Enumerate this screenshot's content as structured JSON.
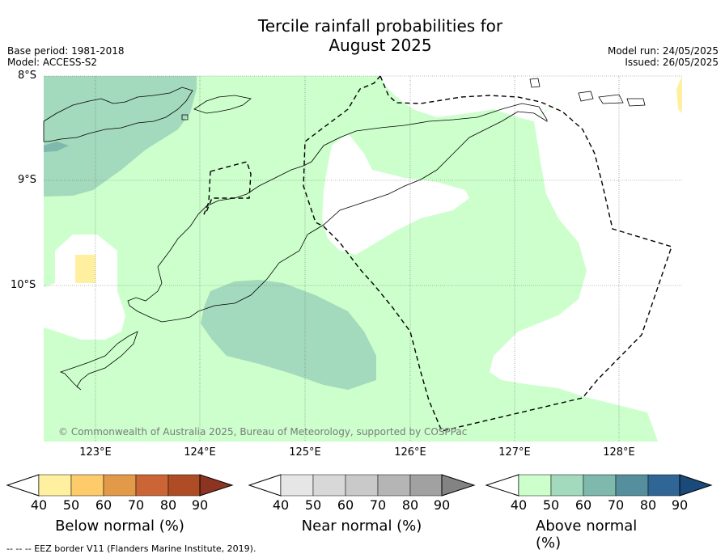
{
  "title_line1": "Tercile rainfall probabilities for",
  "title_line2": "August 2025",
  "base_period": "Base period: 1981-2018",
  "model": "Model: ACCESS-S2",
  "model_run": "Model run: 24/05/2025",
  "issued": "Issued: 26/05/2025",
  "lat_labels": [
    "8°S",
    "9°S",
    "10°S"
  ],
  "lon_labels": [
    "123°E",
    "124°E",
    "125°E",
    "126°E",
    "127°E",
    "128°E"
  ],
  "copyright": "© Commonwealth of Australia 2025, Bureau of Meteorology, supported by COSPPac",
  "colorbars": [
    {
      "label": "Below normal (%)",
      "ticks": [
        "40",
        "50",
        "60",
        "70",
        "80",
        "90"
      ],
      "colors": [
        "#ffffff",
        "#fff0a0",
        "#fdcb6a",
        "#e29a48",
        "#cc6535",
        "#ae4c26",
        "#8c3421"
      ]
    },
    {
      "label": "Near normal (%)",
      "ticks": [
        "40",
        "50",
        "60",
        "70",
        "80",
        "90"
      ],
      "colors": [
        "#ffffff",
        "#e6e6e6",
        "#d8d8d8",
        "#c9c9c9",
        "#b5b5b5",
        "#a1a1a1",
        "#838383"
      ]
    },
    {
      "label": "Above normal (%)",
      "ticks": [
        "40",
        "50",
        "60",
        "70",
        "80",
        "90"
      ],
      "colors": [
        "#ffffff",
        "#ccffcc",
        "#a3d9bc",
        "#7fb8ac",
        "#558f9e",
        "#2f6696",
        "#1a4a7a"
      ]
    }
  ],
  "footer": "--  --  -- EEZ border V11 (Flanders Marine Institute, 2019)."
}
